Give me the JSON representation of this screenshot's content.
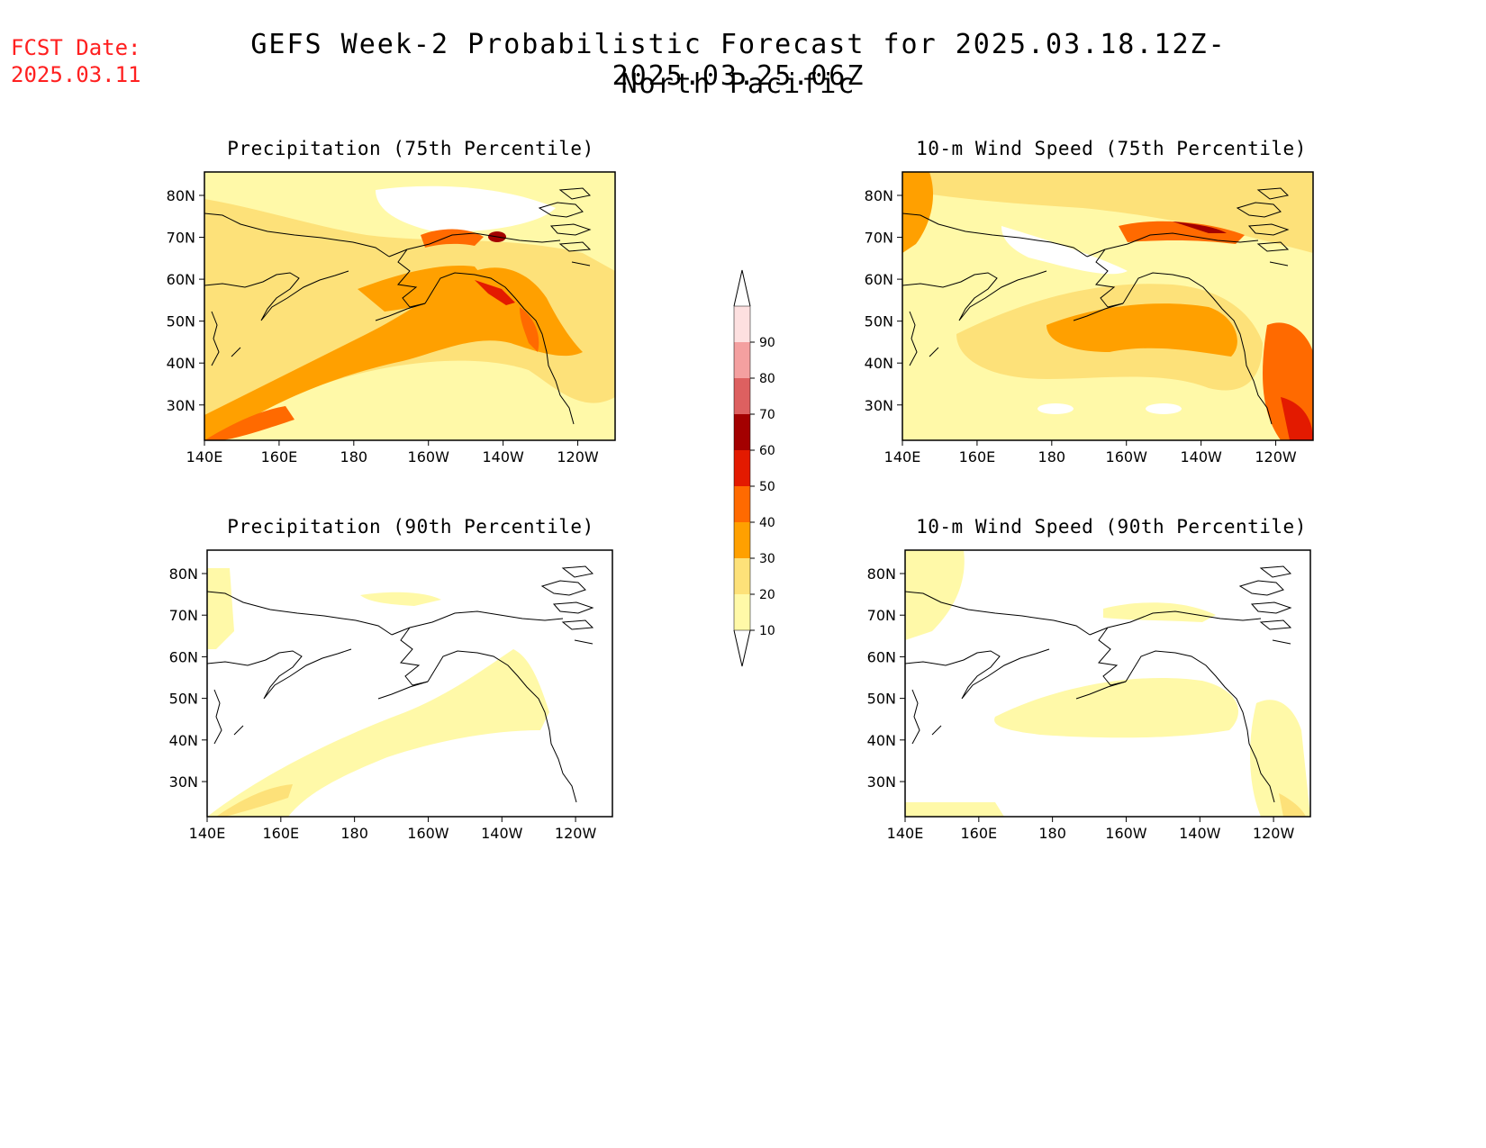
{
  "header": {
    "fcst_label": "FCST Date:",
    "fcst_date": "2025.03.11",
    "title": "GEFS Week-2 Probabilistic Forecast for 2025.03.18.12Z-2025.03.25.06Z",
    "subtitle": "North Pacific"
  },
  "axes": {
    "lat_labels": [
      "80N",
      "70N",
      "60N",
      "50N",
      "40N",
      "30N"
    ],
    "lon_labels": [
      "140E",
      "160E",
      "180",
      "160W",
      "140W",
      "120W"
    ]
  },
  "panels": [
    {
      "id": "precip75",
      "title": "Precipitation (75th Percentile)"
    },
    {
      "id": "wind75",
      "title": "10-m Wind Speed (75th Percentile)"
    },
    {
      "id": "precip90",
      "title": "Precipitation (90th Percentile)"
    },
    {
      "id": "wind90",
      "title": "10-m Wind Speed (90th Percentile)"
    }
  ],
  "colorbar": {
    "levels": [
      "10",
      "20",
      "30",
      "40",
      "50",
      "60",
      "70",
      "80",
      "90"
    ],
    "colors": [
      "#fff9a8",
      "#fde179",
      "#ffa000",
      "#ff6a00",
      "#e31a00",
      "#a30000",
      "#dd6060",
      "#f4a0a0",
      "#fde0e0"
    ]
  }
}
